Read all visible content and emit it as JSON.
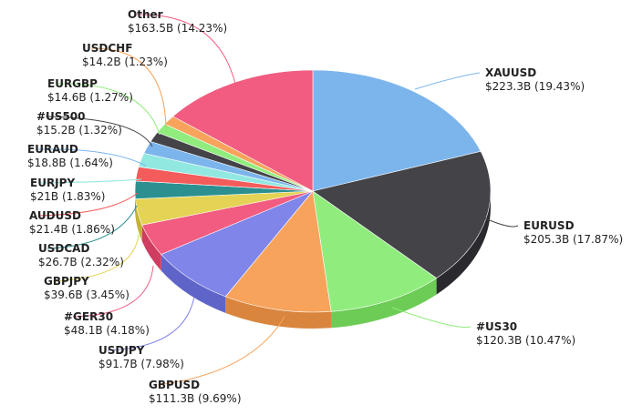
{
  "chart_data": {
    "type": "pie",
    "style": "3d",
    "slices": [
      {
        "name": "XAUUSD",
        "value": 223.3,
        "value_label": "$223.3B",
        "percent": 19.43,
        "percent_label": "(19.43%)",
        "color": "#7cb5ec",
        "side": "#5e94c4"
      },
      {
        "name": "EURUSD",
        "value": 205.3,
        "value_label": "$205.3B",
        "percent": 17.87,
        "percent_label": "(17.87%)",
        "color": "#434348",
        "side": "#2a2a2e"
      },
      {
        "name": "#US30",
        "value": 120.3,
        "value_label": "$120.3B",
        "percent": 10.47,
        "percent_label": "(10.47%)",
        "color": "#90ed7d",
        "side": "#6ccc56"
      },
      {
        "name": "GBPUSD",
        "value": 111.3,
        "value_label": "$111.3B",
        "percent": 9.69,
        "percent_label": "(9.69%)",
        "color": "#f7a35c",
        "side": "#d9853e"
      },
      {
        "name": "USDJPY",
        "value": 91.7,
        "value_label": "$91.7B",
        "percent": 7.98,
        "percent_label": "(7.98%)",
        "color": "#8085e9",
        "side": "#5f64c9"
      },
      {
        "name": "#GER30",
        "value": 48.1,
        "value_label": "$48.1B",
        "percent": 4.18,
        "percent_label": "(4.18%)",
        "color": "#f15c80",
        "side": "#cf3d61"
      },
      {
        "name": "GBPJPY",
        "value": 39.6,
        "value_label": "$39.6B",
        "percent": 3.45,
        "percent_label": "(3.45%)",
        "color": "#e4d354",
        "side": "#c2b236"
      },
      {
        "name": "USDCAD",
        "value": 26.7,
        "value_label": "$26.7B",
        "percent": 2.32,
        "percent_label": "(2.32%)",
        "color": "#2b908f",
        "side": "#1c6f6e"
      },
      {
        "name": "AUDUSD",
        "value": 21.4,
        "value_label": "$21.4B",
        "percent": 1.86,
        "percent_label": "(1.86%)",
        "color": "#f45b5b",
        "side": "#d23c3c"
      },
      {
        "name": "EURJPY",
        "value": 21,
        "value_label": "$21B",
        "percent": 1.83,
        "percent_label": "(1.83%)",
        "color": "#91e8e1",
        "side": "#6fc6bf"
      },
      {
        "name": "EURAUD",
        "value": 18.8,
        "value_label": "$18.8B",
        "percent": 1.64,
        "percent_label": "(1.64%)",
        "color": "#7cb5ec",
        "side": "#5e94c4"
      },
      {
        "name": "#US500",
        "value": 15.2,
        "value_label": "$15.2B",
        "percent": 1.32,
        "percent_label": "(1.32%)",
        "color": "#434348",
        "side": "#2a2a2e"
      },
      {
        "name": "EURGBP",
        "value": 14.6,
        "value_label": "$14.6B",
        "percent": 1.27,
        "percent_label": "(1.27%)",
        "color": "#90ed7d",
        "side": "#6ccc56"
      },
      {
        "name": "USDCHF",
        "value": 14.2,
        "value_label": "$14.2B",
        "percent": 1.23,
        "percent_label": "(1.23%)",
        "color": "#f7a35c",
        "side": "#d9853e"
      },
      {
        "name": "Other",
        "value": 163.5,
        "value_label": "$163.5B",
        "percent": 14.23,
        "percent_label": "(14.23%)",
        "color": "#f15c80",
        "side": "#cf3d61"
      }
    ]
  }
}
